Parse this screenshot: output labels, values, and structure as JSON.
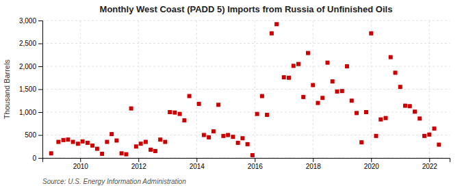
{
  "chart_data": {
    "type": "scatter",
    "title": "Monthly West Coast (PADD 5) Imports from Russia of Unfinished Oils",
    "ylabel": "Thousand Barrels",
    "annotations": [
      "Source: U.S. Energy Information Administration"
    ],
    "color": "#cc0000",
    "marker": "square",
    "grid": true,
    "xlim": [
      2008.7,
      2022.7
    ],
    "xticks": [
      2010,
      2012,
      2014,
      2016,
      2018,
      2020,
      2022
    ],
    "ylim": [
      0,
      3000
    ],
    "yticks": [
      0,
      500,
      {
        "value": 1000,
        "label": "1,000"
      },
      {
        "value": 1500,
        "label": "1,500"
      },
      {
        "value": 2000,
        "label": "2,000"
      },
      {
        "value": 2500,
        "label": "2,500"
      },
      {
        "value": 3000,
        "label": "3,000"
      }
    ],
    "x": [
      2009.0,
      2009.25,
      2009.42,
      2009.58,
      2009.75,
      2009.92,
      2010.08,
      2010.25,
      2010.42,
      2010.58,
      2010.75,
      2010.92,
      2011.08,
      2011.25,
      2011.42,
      2011.58,
      2011.75,
      2011.92,
      2012.08,
      2012.25,
      2012.42,
      2012.58,
      2012.75,
      2012.92,
      2013.08,
      2013.25,
      2013.42,
      2013.58,
      2013.75,
      2014.08,
      2014.25,
      2014.42,
      2014.58,
      2014.75,
      2014.92,
      2015.08,
      2015.25,
      2015.42,
      2015.58,
      2015.75,
      2015.92,
      2016.08,
      2016.25,
      2016.42,
      2016.58,
      2016.75,
      2017.0,
      2017.17,
      2017.33,
      2017.5,
      2017.67,
      2017.83,
      2018.0,
      2018.17,
      2018.33,
      2018.5,
      2018.67,
      2018.83,
      2019.0,
      2019.17,
      2019.33,
      2019.5,
      2019.67,
      2019.83,
      2020.0,
      2020.17,
      2020.33,
      2020.5,
      2020.67,
      2020.83,
      2021.0,
      2021.17,
      2021.33,
      2021.5,
      2021.67,
      2021.83,
      2022.0,
      2022.17,
      2022.33
    ],
    "values": [
      100,
      350,
      390,
      400,
      350,
      310,
      360,
      330,
      270,
      200,
      90,
      350,
      520,
      380,
      100,
      80,
      1080,
      250,
      310,
      350,
      180,
      150,
      400,
      350,
      1000,
      990,
      960,
      820,
      1350,
      1180,
      500,
      450,
      580,
      1160,
      480,
      500,
      460,
      330,
      430,
      300,
      60,
      960,
      1350,
      940,
      2720,
      2920,
      1760,
      1750,
      2010,
      2050,
      1330,
      2290,
      1590,
      1200,
      1310,
      2080,
      1670,
      1450,
      1460,
      2000,
      1250,
      980,
      340,
      1000,
      2720,
      480,
      840,
      870,
      2200,
      1860,
      1550,
      1140,
      1130,
      1010,
      860,
      480,
      510,
      640,
      290
    ]
  }
}
